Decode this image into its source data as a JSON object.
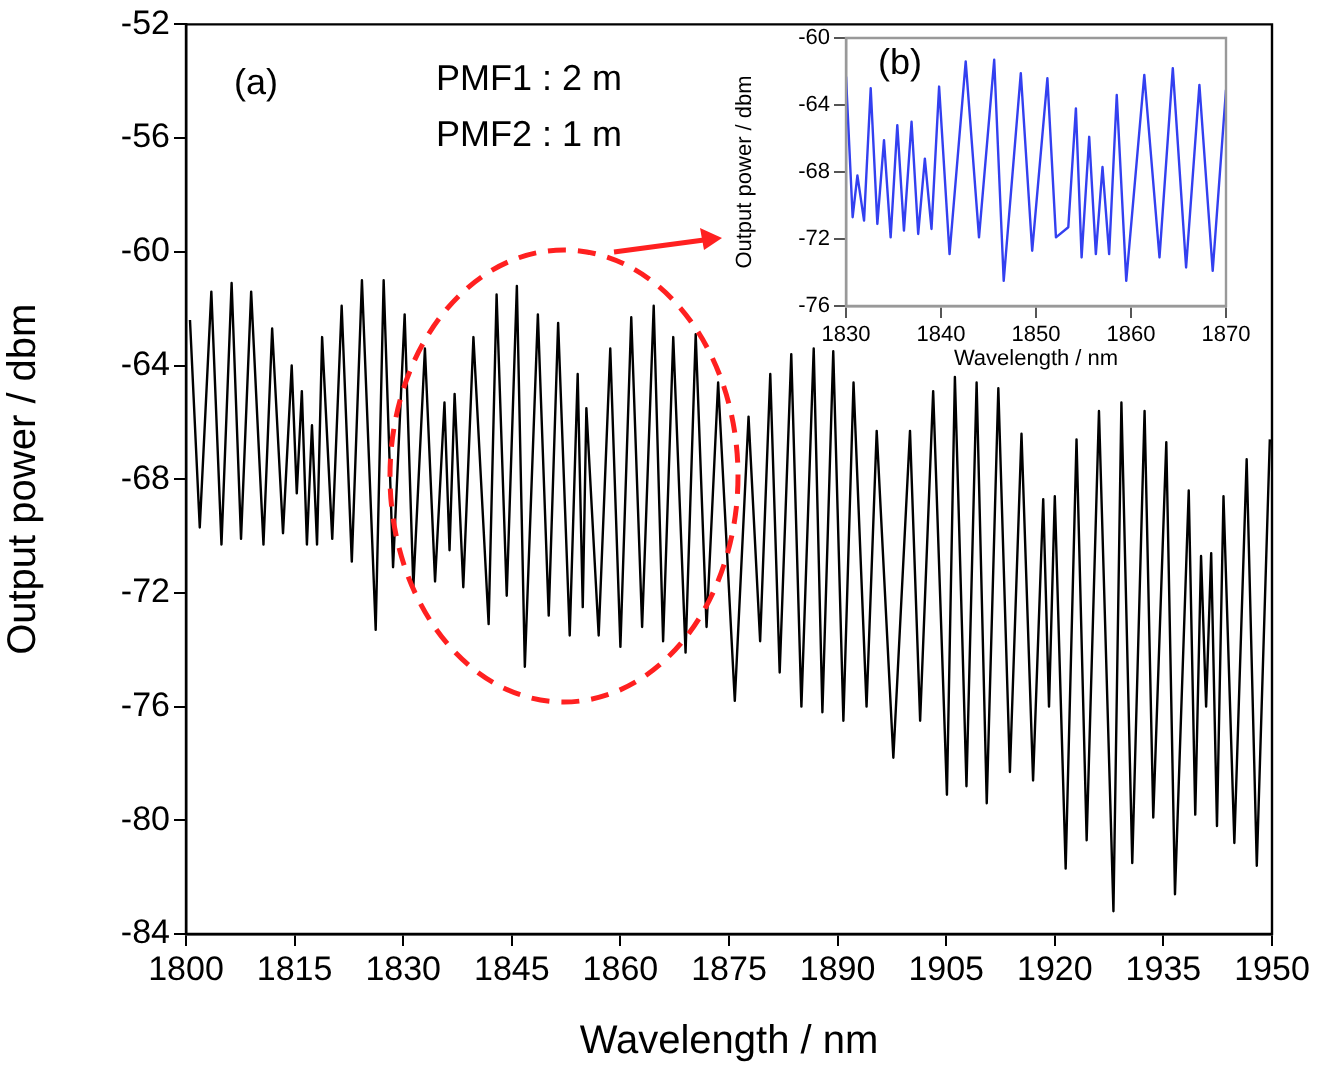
{
  "chart_data": [
    {
      "type": "line",
      "xlabel": "Wavelength / nm",
      "ylabel": "Output power / dbm",
      "xlim": [
        1800,
        1950
      ],
      "xticks": [
        1800,
        1815,
        1830,
        1845,
        1860,
        1875,
        1890,
        1905,
        1920,
        1935,
        1950
      ],
      "ylim": [
        -84,
        -52
      ],
      "yticks": [
        -84,
        -80,
        -76,
        -72,
        -68,
        -64,
        -60,
        -56,
        -52
      ],
      "grid": false,
      "legend": false,
      "marker": "none",
      "annotations": [
        "(a)",
        "PMF1 : 2 m",
        "PMF2 : 1 m"
      ],
      "series": [
        {
          "color": "#000000",
          "x": [
            1800.55,
            1801.9,
            1803.5,
            1804.9,
            1806.3,
            1807.6,
            1809.0,
            1810.7,
            1811.9,
            1813.4,
            1814.6,
            1815.3,
            1816.0,
            1816.7,
            1817.4,
            1818.1,
            1818.8,
            1820.2,
            1821.5,
            1822.9,
            1824.3,
            1826.2,
            1827.3,
            1828.6,
            1830.2,
            1831.4,
            1833.0,
            1834.4,
            1835.7,
            1836.4,
            1837.1,
            1838.3,
            1839.7,
            1841.8,
            1842.9,
            1844.3,
            1845.7,
            1846.8,
            1848.6,
            1850.1,
            1851.4,
            1853.0,
            1854.1,
            1854.8,
            1855.3,
            1857.0,
            1858.6,
            1860.0,
            1861.5,
            1863.0,
            1864.6,
            1865.9,
            1867.3,
            1869.0,
            1870.4,
            1871.9,
            1873.5,
            1875.8,
            1877.7,
            1879.3,
            1880.7,
            1882.0,
            1883.6,
            1885.0,
            1886.7,
            1887.9,
            1889.4,
            1890.8,
            1892.2,
            1894.0,
            1895.4,
            1897.7,
            1900.0,
            1901.4,
            1903.2,
            1905.1,
            1906.2,
            1907.8,
            1909.2,
            1910.6,
            1912.2,
            1913.8,
            1915.4,
            1917.0,
            1918.4,
            1919.2,
            1920.0,
            1921.5,
            1923.0,
            1924.4,
            1926.1,
            1928.1,
            1929.2,
            1930.7,
            1932.4,
            1933.6,
            1935.4,
            1936.6,
            1938.5,
            1939.4,
            1940.2,
            1940.9,
            1941.6,
            1942.4,
            1943.3,
            1944.8,
            1946.5,
            1947.9,
            1949.7
          ],
          "values": [
            -62.4,
            -69.7,
            -61.4,
            -70.3,
            -61.1,
            -70.1,
            -61.4,
            -70.3,
            -62.7,
            -69.9,
            -64.0,
            -68.5,
            -64.9,
            -70.3,
            -66.1,
            -70.3,
            -63.0,
            -70.1,
            -61.9,
            -70.9,
            -61.0,
            -73.3,
            -61.0,
            -71.1,
            -62.2,
            -71.8,
            -63.4,
            -71.6,
            -65.3,
            -70.5,
            -65.0,
            -71.8,
            -63.0,
            -73.1,
            -61.5,
            -72.1,
            -61.2,
            -74.6,
            -62.2,
            -72.8,
            -62.5,
            -73.5,
            -64.3,
            -72.5,
            -65.5,
            -73.5,
            -63.4,
            -73.9,
            -62.3,
            -73.2,
            -61.9,
            -73.7,
            -63.0,
            -74.1,
            -62.9,
            -73.2,
            -64.6,
            -75.8,
            -65.8,
            -73.7,
            -64.3,
            -74.8,
            -63.6,
            -76.0,
            -63.4,
            -76.2,
            -63.5,
            -76.5,
            -64.6,
            -76.0,
            -66.3,
            -77.8,
            -66.3,
            -76.5,
            -64.9,
            -79.1,
            -64.4,
            -78.8,
            -64.6,
            -79.4,
            -64.8,
            -78.3,
            -66.4,
            -78.6,
            -68.7,
            -76.0,
            -68.6,
            -81.7,
            -66.6,
            -80.7,
            -65.6,
            -83.2,
            -65.3,
            -81.5,
            -65.6,
            -79.9,
            -66.7,
            -82.6,
            -68.4,
            -79.8,
            -70.7,
            -76.0,
            -70.6,
            -80.2,
            -68.6,
            -80.8,
            -67.3,
            -81.6,
            -66.6
          ]
        }
      ]
    },
    {
      "type": "line",
      "xlabel": "Wavelength / nm",
      "ylabel": "Output power / dbm",
      "xlim": [
        1830,
        1870
      ],
      "xticks": [
        1830,
        1840,
        1850,
        1860,
        1870
      ],
      "ylim": [
        -76,
        -60
      ],
      "yticks": [
        -76,
        -72,
        -68,
        -64,
        -60
      ],
      "grid": false,
      "legend": false,
      "marker": "none",
      "annotations": [
        "(b)"
      ],
      "series": [
        {
          "color": "#3340f0",
          "x": [
            1830.0,
            1830.7,
            1831.2,
            1831.9,
            1832.6,
            1833.3,
            1834.0,
            1834.7,
            1835.4,
            1836.1,
            1836.9,
            1837.6,
            1838.3,
            1839.0,
            1839.8,
            1840.9,
            1842.6,
            1844.0,
            1845.6,
            1846.6,
            1848.4,
            1849.6,
            1851.2,
            1852.1,
            1853.4,
            1854.2,
            1854.8,
            1855.6,
            1856.3,
            1857.0,
            1857.7,
            1858.5,
            1859.5,
            1861.4,
            1863.0,
            1864.4,
            1865.8,
            1867.2,
            1868.6,
            1870.0
          ],
          "values": [
            -62.3,
            -70.7,
            -68.2,
            -70.9,
            -63.0,
            -71.1,
            -66.1,
            -71.9,
            -65.2,
            -71.5,
            -65.0,
            -71.7,
            -67.2,
            -71.4,
            -62.9,
            -72.9,
            -61.4,
            -71.9,
            -61.3,
            -74.5,
            -62.1,
            -72.7,
            -62.4,
            -71.9,
            -71.3,
            -64.2,
            -73.1,
            -65.9,
            -72.9,
            -67.7,
            -72.9,
            -63.4,
            -74.5,
            -62.2,
            -73.1,
            -61.8,
            -73.7,
            -62.8,
            -73.9,
            -63.1
          ]
        }
      ]
    }
  ]
}
